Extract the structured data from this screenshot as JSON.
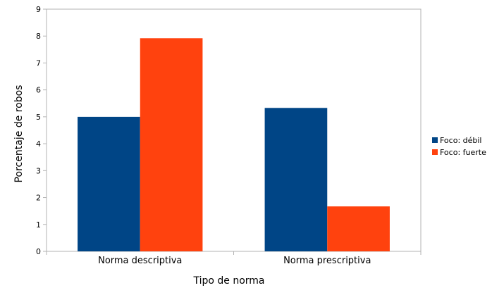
{
  "chart_data": {
    "type": "bar",
    "categories": [
      "Norma descriptiva",
      "Norma prescriptiva"
    ],
    "series": [
      {
        "name": "Foco: débil",
        "values": [
          5.0,
          5.33
        ]
      },
      {
        "name": "Foco: fuerte",
        "values": [
          7.92,
          1.67
        ]
      }
    ],
    "xlabel": "Tipo de norma",
    "ylabel": "Porcentaje de robos",
    "ylim": [
      0,
      9
    ],
    "yticks": [
      "0",
      "1",
      "2",
      "3",
      "4",
      "5",
      "6",
      "7",
      "8",
      "9"
    ],
    "grid": false,
    "legend": "right"
  },
  "colors": {
    "series": [
      "#004586",
      "#ff420e"
    ],
    "plot_border": "#b3b3b3",
    "axis": "#b3b3b3"
  }
}
